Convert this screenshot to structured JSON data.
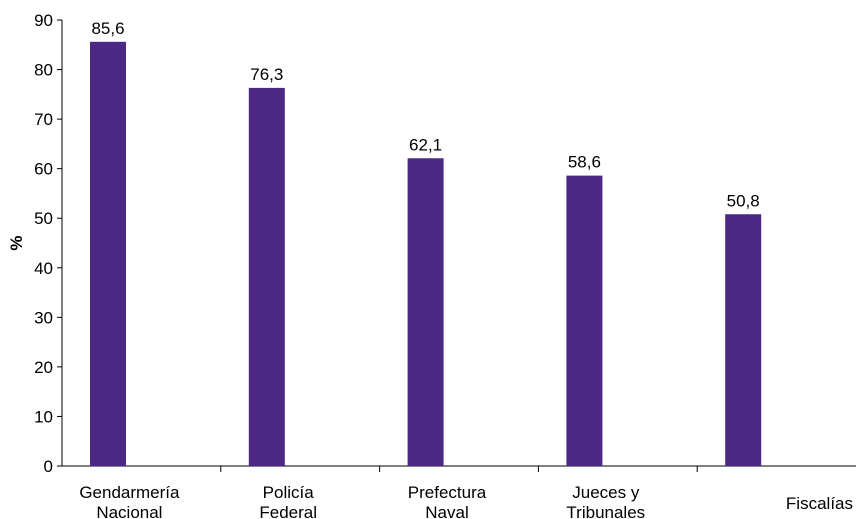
{
  "chart_data": {
    "type": "bar",
    "title": "",
    "xlabel": "",
    "ylabel": "%",
    "ylim": [
      0,
      90
    ],
    "yticks": [
      0,
      10,
      20,
      30,
      40,
      50,
      60,
      70,
      80,
      90
    ],
    "grid": false,
    "legend": "none",
    "categories": [
      [
        "Gendarmería",
        "Nacional"
      ],
      [
        "Policía",
        "Federal"
      ],
      [
        "Prefectura",
        "Naval"
      ],
      [
        "Jueces y",
        "Tribunales"
      ],
      [
        "Fiscalías"
      ]
    ],
    "values": [
      85.6,
      76.3,
      62.1,
      58.6,
      50.8
    ],
    "value_labels": [
      "85,6",
      "76,3",
      "62,1",
      "58,6",
      "50,8"
    ],
    "bar_color": "#4b2883"
  }
}
